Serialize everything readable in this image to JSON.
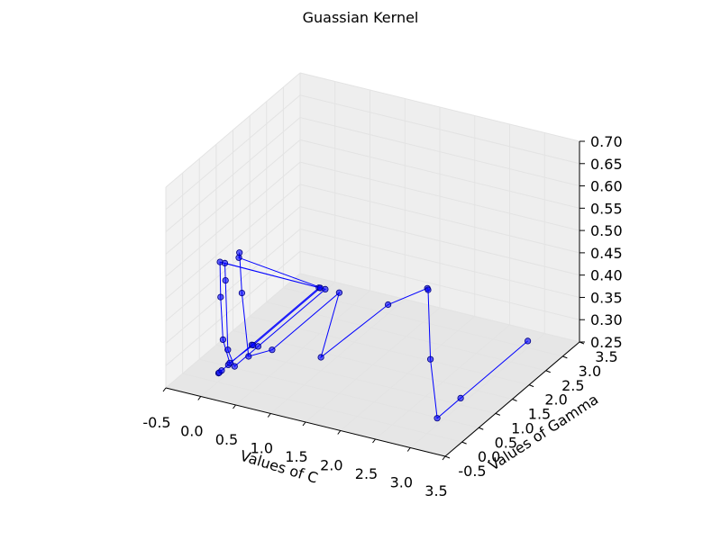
{
  "chart_data": {
    "type": "scatter",
    "projection": "3d",
    "title": "Guassian Kernel",
    "xlabel": "Values of C",
    "ylabel": "Values of Gamma",
    "zlabel": "",
    "xlim": [
      -0.5,
      3.5
    ],
    "ylim": [
      -0.5,
      3.5
    ],
    "zlim": [
      0.25,
      0.7
    ],
    "x_ticks": [
      "-0.5",
      "0.0",
      "0.5",
      "1.0",
      "1.5",
      "2.0",
      "2.5",
      "3.0",
      "3.5"
    ],
    "y_ticks": [
      "-0.5",
      "0.0",
      "0.5",
      "1.0",
      "1.5",
      "2.0",
      "2.5",
      "3.0",
      "3.5"
    ],
    "z_ticks": [
      "0.25",
      "0.30",
      "0.35",
      "0.40",
      "0.45",
      "0.50",
      "0.55",
      "0.60",
      "0.65",
      "0.70"
    ],
    "grid": true,
    "series": [
      {
        "color": "#0000ff",
        "marker": "circle",
        "connected": true,
        "points": [
          {
            "x": 0.01,
            "y": 0.01,
            "z": 0.27
          },
          {
            "x": 0.01,
            "y": 0.03,
            "z": 0.27
          },
          {
            "x": 0.01,
            "y": 0.1,
            "z": 0.27
          },
          {
            "x": 0.01,
            "y": 0.3,
            "z": 0.27
          },
          {
            "x": 0.01,
            "y": 1.0,
            "z": 0.27
          },
          {
            "x": 0.01,
            "y": 3.0,
            "z": 0.27
          },
          {
            "x": 0.03,
            "y": 0.01,
            "z": 0.52
          },
          {
            "x": 0.03,
            "y": 0.03,
            "z": 0.44
          },
          {
            "x": 0.03,
            "y": 0.1,
            "z": 0.34
          },
          {
            "x": 0.03,
            "y": 0.3,
            "z": 0.275
          },
          {
            "x": 0.03,
            "y": 1.0,
            "z": 0.27
          },
          {
            "x": 0.03,
            "y": 3.0,
            "z": 0.27
          },
          {
            "x": 0.1,
            "y": 0.01,
            "z": 0.52
          },
          {
            "x": 0.1,
            "y": 0.03,
            "z": 0.48
          },
          {
            "x": 0.1,
            "y": 0.1,
            "z": 0.32
          },
          {
            "x": 0.1,
            "y": 0.3,
            "z": 0.27
          },
          {
            "x": 0.1,
            "y": 1.0,
            "z": 0.27
          },
          {
            "x": 0.1,
            "y": 3.0,
            "z": 0.27
          },
          {
            "x": 0.3,
            "y": 0.01,
            "z": 0.54
          },
          {
            "x": 0.3,
            "y": 0.03,
            "z": 0.55
          },
          {
            "x": 0.3,
            "y": 0.1,
            "z": 0.455
          },
          {
            "x": 0.3,
            "y": 0.3,
            "z": 0.3
          },
          {
            "x": 0.3,
            "y": 1.0,
            "z": 0.27
          },
          {
            "x": 0.3,
            "y": 3.0,
            "z": 0.27
          },
          {
            "x": 1.0,
            "y": 1.0,
            "z": 0.28
          },
          {
            "x": 1.0,
            "y": 3.0,
            "z": 0.27
          },
          {
            "x": 3.0,
            "y": 0.01,
            "z": 0.575
          },
          {
            "x": 3.0,
            "y": 0.03,
            "z": 0.57
          },
          {
            "x": 3.0,
            "y": 0.1,
            "z": 0.41
          },
          {
            "x": 3.0,
            "y": 0.3,
            "z": 0.265
          },
          {
            "x": 3.0,
            "y": 1.0,
            "z": 0.265
          },
          {
            "x": 3.0,
            "y": 3.0,
            "z": 0.265
          }
        ]
      }
    ]
  },
  "colors": {
    "series": "#0000ff",
    "marker_edge": "#000080",
    "pane_left": "#f2f2f2",
    "pane_back": "#eeeeee",
    "pane_floor": "#e6e6e6",
    "grid": "#e3e3e3"
  }
}
